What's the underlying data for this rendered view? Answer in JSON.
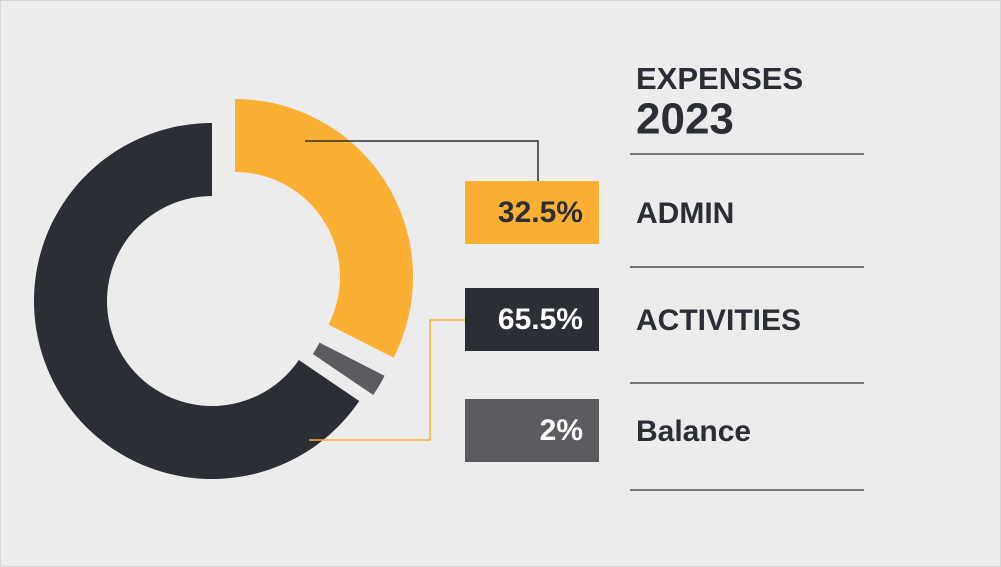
{
  "chart_data": {
    "type": "donut",
    "title": "EXPENSES",
    "subtitle": "2023",
    "categories": [
      "ADMIN",
      "ACTIVITIES",
      "Balance"
    ],
    "values": [
      32.5,
      65.5,
      2
    ],
    "value_labels": [
      "32.5%",
      "65.5%",
      "2%"
    ],
    "colors": [
      "#fbb034",
      "#2b2e35",
      "#5b5c60"
    ]
  }
}
